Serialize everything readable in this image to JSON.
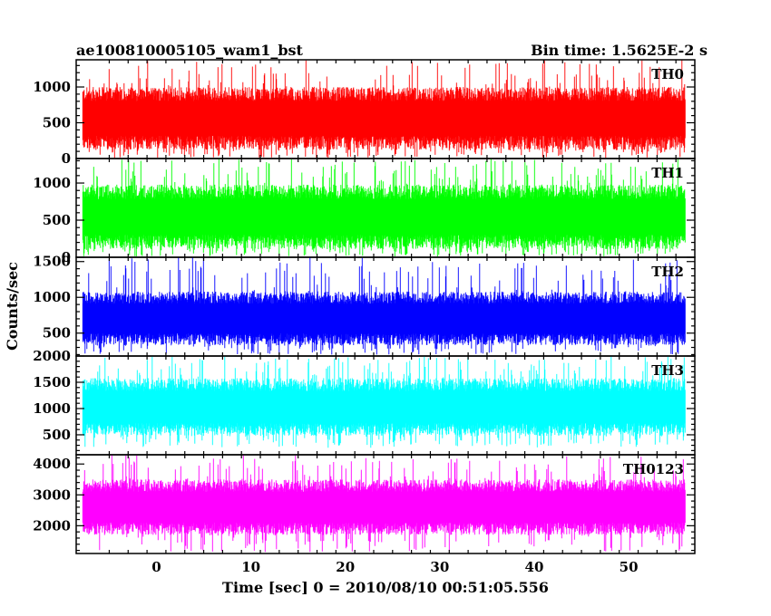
{
  "header": {
    "title": "ae100810005105_wam1_bst",
    "bin_time": "Bin time: 1.5625E-2 s"
  },
  "chart_data": {
    "type": "line",
    "title": "ae100810005105_wam1_bst",
    "xlabel": "Time [sec] 0 = 2010/08/10 00:51:05.556",
    "ylabel": "Counts/sec",
    "xlim": [
      -8.5,
      57
    ],
    "data_x_range": [
      -7.8,
      56
    ],
    "x_ticks": [
      0,
      10,
      20,
      30,
      40,
      50
    ],
    "x_tick_labels": [
      "0",
      "10",
      "20",
      "30",
      "40",
      "50"
    ],
    "panels": [
      {
        "name": "TH0",
        "color": "#ff0000",
        "ylim": [
          0,
          1380
        ],
        "y_ticks": [
          0,
          500,
          1000
        ],
        "y_tick_labels": [
          "0",
          "500",
          "1000"
        ],
        "baseline": 560,
        "band_low": 120,
        "band_high": 1000,
        "min": 10,
        "max": 1380
      },
      {
        "name": "TH1",
        "color": "#00ff00",
        "ylim": [
          0,
          1330
        ],
        "y_ticks": [
          0,
          500,
          1000
        ],
        "y_tick_labels": [
          "0",
          "500",
          "1000"
        ],
        "baseline": 540,
        "band_low": 110,
        "band_high": 980,
        "min": 10,
        "max": 1330
      },
      {
        "name": "TH2",
        "color": "#0000ff",
        "ylim": [
          180,
          1560
        ],
        "y_ticks": [
          500,
          1000,
          1500
        ],
        "y_tick_labels": [
          "500",
          "1000",
          "1500"
        ],
        "baseline": 700,
        "band_low": 330,
        "band_high": 1080,
        "min": 200,
        "max": 1560
      },
      {
        "name": "TH3",
        "color": "#00ffff",
        "ylim": [
          120,
          2000
        ],
        "y_ticks": [
          500,
          1000,
          1500,
          2000
        ],
        "y_tick_labels": [
          "500",
          "1000",
          "1500",
          "2000"
        ],
        "baseline": 1020,
        "band_low": 480,
        "band_high": 1580,
        "min": 250,
        "max": 2000
      },
      {
        "name": "TH0123",
        "color": "#ff00ff",
        "ylim": [
          1100,
          4300
        ],
        "y_ticks": [
          2000,
          3000,
          4000
        ],
        "y_tick_labels": [
          "2000",
          "3000",
          "4000"
        ],
        "baseline": 2600,
        "band_low": 1700,
        "band_high": 3500,
        "min": 1150,
        "max": 4300
      }
    ]
  }
}
